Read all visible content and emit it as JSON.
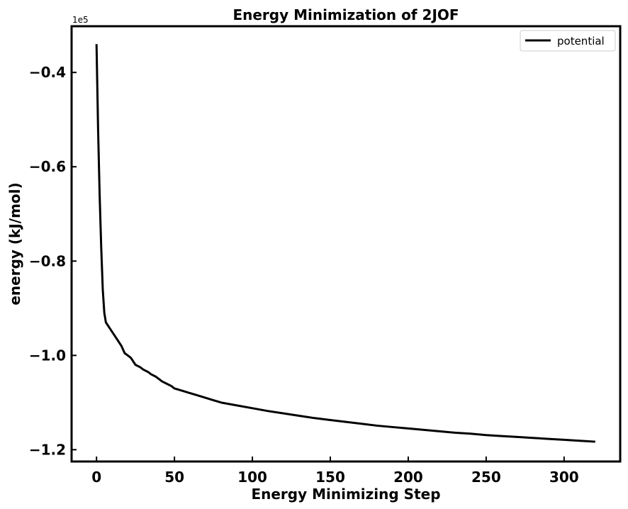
{
  "chart_data": {
    "type": "line",
    "title": "Energy Minimization of 2JOF",
    "xlabel": "Energy Minimizing Step",
    "ylabel": "energy (kJ/mol)",
    "y_offset_label": "1e5",
    "xlim": [
      -16,
      336
    ],
    "ylim": [
      -1.225,
      -0.302
    ],
    "x_ticks": [
      0,
      50,
      100,
      150,
      200,
      250,
      300
    ],
    "x_tick_labels": [
      "0",
      "50",
      "100",
      "150",
      "200",
      "250",
      "300"
    ],
    "y_ticks": [
      -0.4,
      -0.6,
      -0.8,
      -1.0,
      -1.2
    ],
    "y_tick_labels": [
      "−0.4",
      "−0.6",
      "−0.8",
      "−1.0",
      "−1.2"
    ],
    "grid": false,
    "legend_position": "top-right",
    "colors": {
      "line": "#000000",
      "background": "#ffffff"
    },
    "series": [
      {
        "name": "potential",
        "x": [
          0,
          1,
          2,
          3,
          4,
          5,
          6,
          8,
          10,
          12,
          14,
          16,
          18,
          20,
          22,
          25,
          28,
          30,
          33,
          35,
          38,
          40,
          42,
          45,
          48,
          50,
          55,
          60,
          65,
          70,
          75,
          80,
          85,
          90,
          100,
          110,
          120,
          130,
          140,
          150,
          160,
          170,
          180,
          190,
          200,
          210,
          220,
          230,
          240,
          250,
          260,
          270,
          280,
          290,
          300,
          310,
          320
        ],
        "y": [
          -0.34,
          -0.52,
          -0.66,
          -0.77,
          -0.86,
          -0.91,
          -0.93,
          -0.94,
          -0.95,
          -0.96,
          -0.97,
          -0.98,
          -0.995,
          -1.0,
          -1.005,
          -1.02,
          -1.025,
          -1.03,
          -1.035,
          -1.04,
          -1.045,
          -1.05,
          -1.055,
          -1.06,
          -1.065,
          -1.07,
          -1.075,
          -1.08,
          -1.085,
          -1.09,
          -1.095,
          -1.1,
          -1.103,
          -1.106,
          -1.112,
          -1.118,
          -1.123,
          -1.128,
          -1.133,
          -1.137,
          -1.141,
          -1.145,
          -1.149,
          -1.152,
          -1.155,
          -1.158,
          -1.161,
          -1.164,
          -1.166,
          -1.169,
          -1.171,
          -1.173,
          -1.175,
          -1.177,
          -1.179,
          -1.181,
          -1.183
        ]
      }
    ]
  }
}
